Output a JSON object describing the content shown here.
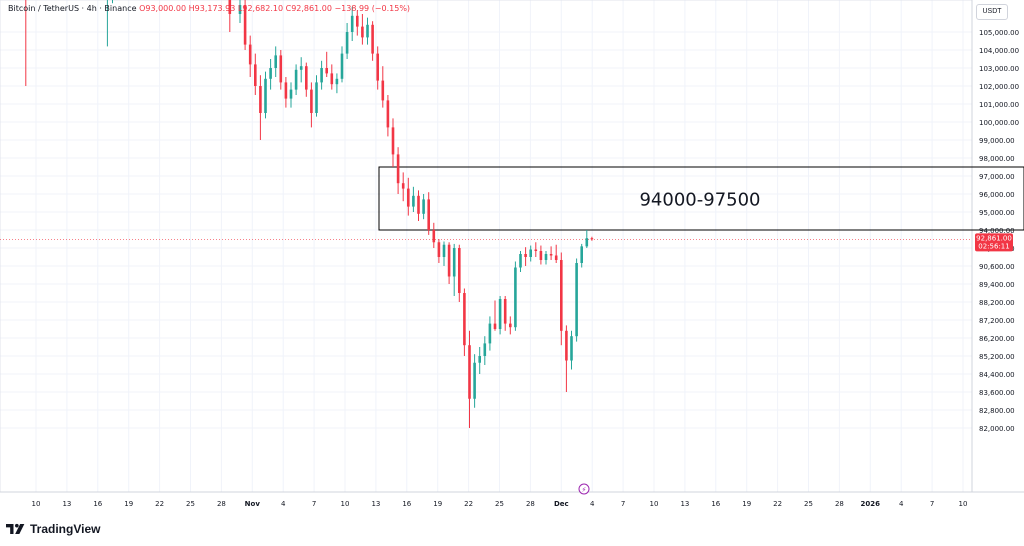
{
  "legend": {
    "symbol": "Bitcoin / TetherUS · 4h · Binance",
    "ohlc": "O93,000.00  H93,173.93  L92,682.10  C92,861.00  −138.99 (−0.15%)"
  },
  "currency_label": "USDT",
  "price_tag": {
    "price": "92,861.00",
    "countdown": "02:56:11",
    "color": "#f23645"
  },
  "zone": {
    "low": 94000,
    "high": 97500,
    "label": "94000-97500"
  },
  "brand": "TradingView",
  "colors": {
    "up": "#26a69a",
    "down": "#f23645",
    "grid": "#f0f3fa"
  },
  "chart_data": {
    "type": "candlestick",
    "title": "",
    "symbol": "BTCUSDT",
    "interval": "4h",
    "y_axis_ticks": [
      {
        "value": 105000,
        "label": "105,000.00"
      },
      {
        "value": 104000,
        "label": "104,000.00"
      },
      {
        "value": 103000,
        "label": "103,000.00"
      },
      {
        "value": 102000,
        "label": "102,000.00"
      },
      {
        "value": 101000,
        "label": "101,000.00"
      },
      {
        "value": 100000,
        "label": "100,000.00"
      },
      {
        "value": 99000,
        "label": "99,000.00"
      },
      {
        "value": 98000,
        "label": "98,000.00"
      },
      {
        "value": 97000,
        "label": "97,000.00"
      },
      {
        "value": 96000,
        "label": "96,000.00"
      },
      {
        "value": 95000,
        "label": "95,000.00"
      },
      {
        "value": 94000,
        "label": "94,000.00"
      },
      {
        "value": 91800,
        "label": "91,800.00"
      },
      {
        "value": 90600,
        "label": "90,600.00"
      },
      {
        "value": 89400,
        "label": "89,400.00"
      },
      {
        "value": 88200,
        "label": "88,200.00"
      },
      {
        "value": 87200,
        "label": "87,200.00"
      },
      {
        "value": 86200,
        "label": "86,200.00"
      },
      {
        "value": 85200,
        "label": "85,200.00"
      },
      {
        "value": 84400,
        "label": "84,400.00"
      },
      {
        "value": 83600,
        "label": "83,600.00"
      },
      {
        "value": 82800,
        "label": "82,800.00"
      },
      {
        "value": 82000,
        "label": "82,000.00"
      }
    ],
    "x_axis_ticks": [
      "10",
      "13",
      "16",
      "19",
      "22",
      "25",
      "28",
      "Nov",
      "4",
      "7",
      "10",
      "13",
      "16",
      "19",
      "22",
      "25",
      "28",
      "Dec",
      "4",
      "7",
      "10",
      "13",
      "16",
      "19",
      "22",
      "25",
      "28",
      "2026",
      "4",
      "7",
      "10"
    ],
    "last_price": 92861,
    "series": [
      {
        "t": "2025-10-09",
        "o": 121800,
        "h": 122500,
        "l": 102000,
        "c": 112500
      },
      {
        "t": "2025-10-17",
        "o": 107500,
        "h": 110000,
        "l": 104200,
        "c": 109000
      },
      {
        "t": "2025-10-17T12",
        "o": 109000,
        "h": 111200,
        "l": 106600,
        "c": 110500
      },
      {
        "t": "2025-10-27",
        "o": 114800,
        "h": 116000,
        "l": 110000,
        "c": 110800
      },
      {
        "t": "2025-10-29",
        "o": 110900,
        "h": 111200,
        "l": 105000,
        "c": 106000
      },
      {
        "t": "2025-10-30",
        "o": 106000,
        "h": 107500,
        "l": 105500,
        "c": 106500
      },
      {
        "t": "2025-10-30T12",
        "o": 106500,
        "h": 107000,
        "l": 104000,
        "c": 104300
      },
      {
        "t": "2025-10-31",
        "o": 104300,
        "h": 104800,
        "l": 102500,
        "c": 103200
      },
      {
        "t": "2025-10-31T12",
        "o": 103200,
        "h": 103800,
        "l": 101500,
        "c": 102000
      },
      {
        "t": "2025-11-01",
        "o": 102000,
        "h": 102600,
        "l": 99000,
        "c": 100500
      },
      {
        "t": "2025-11-01T12",
        "o": 100500,
        "h": 102800,
        "l": 100200,
        "c": 102400
      },
      {
        "t": "2025-11-02",
        "o": 102400,
        "h": 103500,
        "l": 101800,
        "c": 103000
      },
      {
        "t": "2025-11-02T12",
        "o": 103000,
        "h": 104200,
        "l": 102500,
        "c": 103700
      },
      {
        "t": "2025-11-03",
        "o": 103700,
        "h": 104000,
        "l": 101800,
        "c": 102200
      },
      {
        "t": "2025-11-03T12",
        "o": 102200,
        "h": 102500,
        "l": 100800,
        "c": 101300
      },
      {
        "t": "2025-11-04",
        "o": 101300,
        "h": 102200,
        "l": 100800,
        "c": 101800
      },
      {
        "t": "2025-11-04T12",
        "o": 101800,
        "h": 103200,
        "l": 101500,
        "c": 102900
      },
      {
        "t": "2025-11-05",
        "o": 102900,
        "h": 103600,
        "l": 102200,
        "c": 103100
      },
      {
        "t": "2025-11-05T12",
        "o": 103100,
        "h": 103300,
        "l": 101400,
        "c": 101800
      },
      {
        "t": "2025-11-06",
        "o": 101800,
        "h": 102200,
        "l": 99700,
        "c": 100500
      },
      {
        "t": "2025-11-06T12",
        "o": 100500,
        "h": 102600,
        "l": 100300,
        "c": 102200
      },
      {
        "t": "2025-11-07",
        "o": 102200,
        "h": 103400,
        "l": 101800,
        "c": 103000
      },
      {
        "t": "2025-11-07T12",
        "o": 103000,
        "h": 103900,
        "l": 102500,
        "c": 102700
      },
      {
        "t": "2025-11-08",
        "o": 102700,
        "h": 103200,
        "l": 101800,
        "c": 102100
      },
      {
        "t": "2025-11-08T12",
        "o": 102100,
        "h": 102700,
        "l": 101600,
        "c": 102400
      },
      {
        "t": "2025-11-09",
        "o": 102400,
        "h": 104200,
        "l": 102200,
        "c": 103800
      },
      {
        "t": "2025-11-09T12",
        "o": 103800,
        "h": 105500,
        "l": 103500,
        "c": 105000
      },
      {
        "t": "2025-11-10",
        "o": 105000,
        "h": 106400,
        "l": 104500,
        "c": 105900
      },
      {
        "t": "2025-11-10T12",
        "o": 105900,
        "h": 106200,
        "l": 104800,
        "c": 105300
      },
      {
        "t": "2025-11-11",
        "o": 105300,
        "h": 106000,
        "l": 104300,
        "c": 104700
      },
      {
        "t": "2025-11-11T12",
        "o": 104700,
        "h": 105800,
        "l": 104300,
        "c": 105400
      },
      {
        "t": "2025-11-12",
        "o": 105400,
        "h": 105600,
        "l": 103400,
        "c": 103800
      },
      {
        "t": "2025-11-12T12",
        "o": 103800,
        "h": 104200,
        "l": 101800,
        "c": 102300
      },
      {
        "t": "2025-11-13",
        "o": 102300,
        "h": 103100,
        "l": 100800,
        "c": 101200
      },
      {
        "t": "2025-11-13T12",
        "o": 101200,
        "h": 101500,
        "l": 99200,
        "c": 99700
      },
      {
        "t": "2025-11-14",
        "o": 99700,
        "h": 100200,
        "l": 97500,
        "c": 98200
      },
      {
        "t": "2025-11-14T12",
        "o": 98200,
        "h": 98600,
        "l": 96000,
        "c": 96600
      },
      {
        "t": "2025-11-15",
        "o": 96600,
        "h": 97200,
        "l": 95600,
        "c": 96300
      },
      {
        "t": "2025-11-15T12",
        "o": 96300,
        "h": 96900,
        "l": 94800,
        "c": 95300
      },
      {
        "t": "2025-11-16",
        "o": 95300,
        "h": 96400,
        "l": 95000,
        "c": 95900
      },
      {
        "t": "2025-11-16T12",
        "o": 95900,
        "h": 96200,
        "l": 94500,
        "c": 94900
      },
      {
        "t": "2025-11-17",
        "o": 94900,
        "h": 96000,
        "l": 94600,
        "c": 95700
      },
      {
        "t": "2025-11-17T12",
        "o": 95700,
        "h": 96100,
        "l": 93400,
        "c": 94000
      },
      {
        "t": "2025-11-18",
        "o": 94000,
        "h": 94400,
        "l": 91800,
        "c": 92500
      },
      {
        "t": "2025-11-18T12",
        "o": 92500,
        "h": 92900,
        "l": 90800,
        "c": 91200
      },
      {
        "t": "2025-11-19",
        "o": 91200,
        "h": 92600,
        "l": 90600,
        "c": 92200
      },
      {
        "t": "2025-11-19T12",
        "o": 92200,
        "h": 92500,
        "l": 89400,
        "c": 89900
      },
      {
        "t": "2025-11-20",
        "o": 89900,
        "h": 92300,
        "l": 88600,
        "c": 91800
      },
      {
        "t": "2025-11-20T12",
        "o": 91800,
        "h": 92200,
        "l": 88200,
        "c": 88800
      },
      {
        "t": "2025-11-21",
        "o": 88800,
        "h": 89100,
        "l": 85200,
        "c": 85800
      },
      {
        "t": "2025-11-21T12",
        "o": 85800,
        "h": 86600,
        "l": 82000,
        "c": 83300
      },
      {
        "t": "2025-11-22",
        "o": 83300,
        "h": 85300,
        "l": 82900,
        "c": 84900
      },
      {
        "t": "2025-11-22T12",
        "o": 84900,
        "h": 85700,
        "l": 84400,
        "c": 85200
      },
      {
        "t": "2025-11-23",
        "o": 85200,
        "h": 86300,
        "l": 84800,
        "c": 85900
      },
      {
        "t": "2025-11-23T12",
        "o": 85900,
        "h": 87400,
        "l": 85500,
        "c": 87000
      },
      {
        "t": "2025-11-24",
        "o": 87000,
        "h": 88300,
        "l": 86600,
        "c": 86700
      },
      {
        "t": "2025-11-24T12",
        "o": 86700,
        "h": 88600,
        "l": 86400,
        "c": 88400
      },
      {
        "t": "2025-11-25",
        "o": 88400,
        "h": 88600,
        "l": 86600,
        "c": 87000
      },
      {
        "t": "2025-11-25T12",
        "o": 87000,
        "h": 87400,
        "l": 86400,
        "c": 86800
      },
      {
        "t": "2025-11-26",
        "o": 86800,
        "h": 90900,
        "l": 86600,
        "c": 90500
      },
      {
        "t": "2025-11-26T12",
        "o": 90500,
        "h": 91600,
        "l": 90200,
        "c": 91400
      },
      {
        "t": "2025-11-27",
        "o": 91400,
        "h": 91900,
        "l": 90600,
        "c": 91200
      },
      {
        "t": "2025-11-27T12",
        "o": 91200,
        "h": 92100,
        "l": 90900,
        "c": 91700
      },
      {
        "t": "2025-11-28",
        "o": 91700,
        "h": 92500,
        "l": 91200,
        "c": 91600
      },
      {
        "t": "2025-11-28T12",
        "o": 91600,
        "h": 92100,
        "l": 90700,
        "c": 91000
      },
      {
        "t": "2025-11-29",
        "o": 91000,
        "h": 91600,
        "l": 90700,
        "c": 91400
      },
      {
        "t": "2025-11-29T12",
        "o": 91400,
        "h": 92000,
        "l": 91000,
        "c": 91300
      },
      {
        "t": "2025-11-30",
        "o": 91300,
        "h": 92200,
        "l": 90800,
        "c": 91000
      },
      {
        "t": "2025-11-30T12",
        "o": 91000,
        "h": 91500,
        "l": 85800,
        "c": 86600
      },
      {
        "t": "2025-12-01",
        "o": 86600,
        "h": 86900,
        "l": 83600,
        "c": 85000
      },
      {
        "t": "2025-12-01T12",
        "o": 85000,
        "h": 86600,
        "l": 84600,
        "c": 86300
      },
      {
        "t": "2025-12-02",
        "o": 86300,
        "h": 91100,
        "l": 86000,
        "c": 90800
      },
      {
        "t": "2025-12-02T12",
        "o": 90800,
        "h": 92300,
        "l": 90500,
        "c": 92000
      },
      {
        "t": "2025-12-03",
        "o": 92000,
        "h": 94000,
        "l": 91800,
        "c": 93000
      },
      {
        "t": "2025-12-03T12",
        "o": 93000,
        "h": 93174,
        "l": 92682,
        "c": 92861
      }
    ]
  }
}
